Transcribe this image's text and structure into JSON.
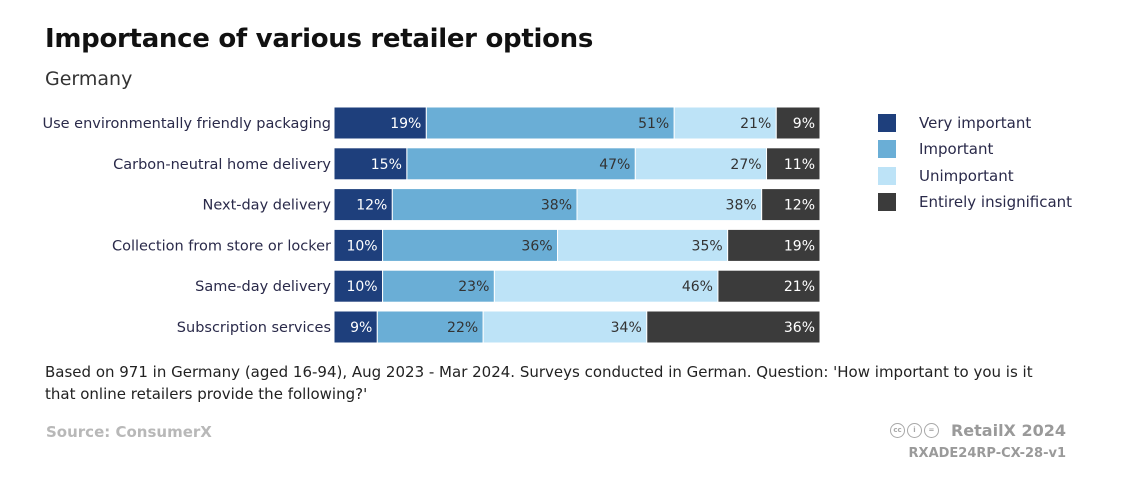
{
  "header": {
    "title": "Importance of various retailer options",
    "subtitle": "Germany"
  },
  "chart_data": {
    "type": "bar",
    "orientation": "horizontal",
    "stacked": true,
    "percent": true,
    "categories": [
      "Use environmentally friendly packaging",
      "Carbon-neutral home delivery",
      "Next-day delivery",
      "Collection from store or locker",
      "Same-day delivery",
      "Subscription services"
    ],
    "series": [
      {
        "name": "Very important",
        "color": "#1e3f7c",
        "label_color": "#ffffff",
        "values": [
          19,
          15,
          12,
          10,
          10,
          9
        ]
      },
      {
        "name": "Important",
        "color": "#6aaed6",
        "label_color": "#333333",
        "values": [
          51,
          47,
          38,
          36,
          23,
          22
        ]
      },
      {
        "name": "Unimportant",
        "color": "#bde3f7",
        "label_color": "#333333",
        "values": [
          21,
          27,
          38,
          35,
          46,
          34
        ]
      },
      {
        "name": "Entirely insignificant",
        "color": "#3b3b3b",
        "label_color": "#ffffff",
        "values": [
          9,
          11,
          12,
          19,
          21,
          36
        ]
      }
    ],
    "value_suffix": "%",
    "legend_position": "right"
  },
  "footer": {
    "note": "Based on 971 in Germany (aged 16-94), Aug 2023 - Mar 2024. Surveys conducted in German. Question: 'How important to you is it that online retailers provide the following?'",
    "source": "Source: ConsumerX",
    "brand": "RetailX 2024",
    "code": "RXADE24RP-CX-28-v1",
    "license_icons": [
      "cc",
      "i",
      "="
    ]
  }
}
